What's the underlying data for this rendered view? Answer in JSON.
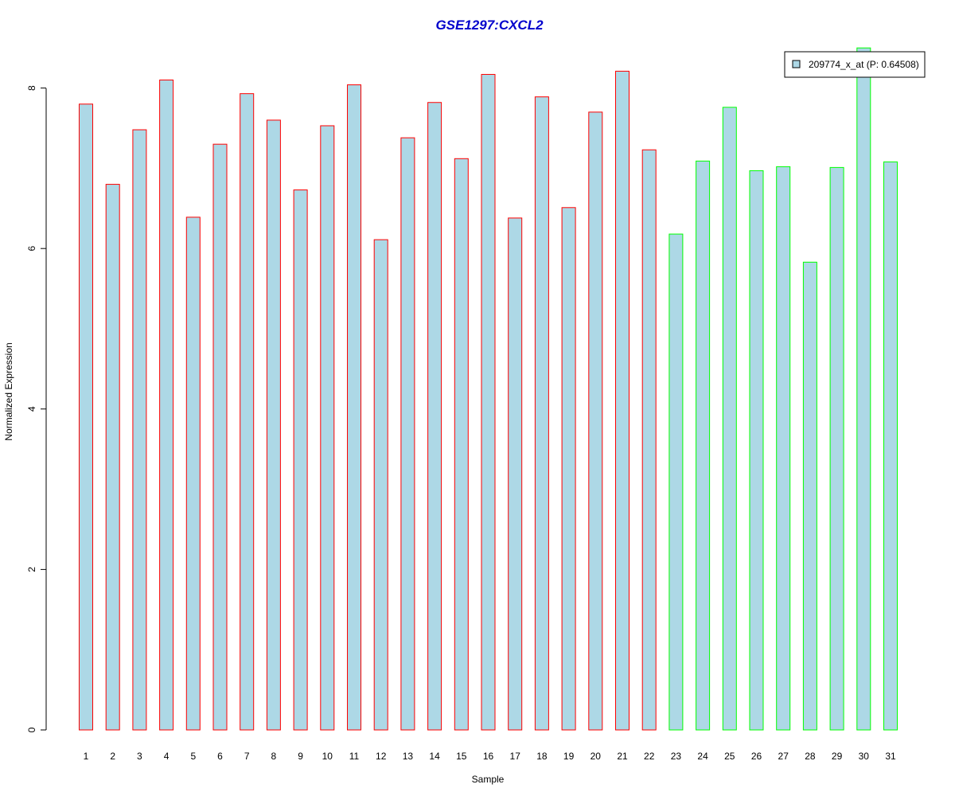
{
  "chart_data": {
    "type": "bar",
    "title": "GSE1297:CXCL2",
    "xlabel": "Sample",
    "ylabel": "Normalized Expression",
    "ylim": [
      0,
      8.5
    ],
    "yticks": [
      "0",
      "2",
      "4",
      "6",
      "8"
    ],
    "categories": [
      "1",
      "2",
      "3",
      "4",
      "5",
      "6",
      "7",
      "8",
      "9",
      "10",
      "11",
      "12",
      "13",
      "14",
      "15",
      "16",
      "17",
      "18",
      "19",
      "20",
      "21",
      "22",
      "23",
      "24",
      "25",
      "26",
      "27",
      "28",
      "29",
      "30",
      "31"
    ],
    "series": [
      {
        "name": "209774_x_at (P: 0.64508)",
        "values": [
          7.8,
          6.8,
          7.48,
          8.1,
          6.39,
          7.3,
          7.93,
          7.6,
          6.73,
          7.53,
          8.04,
          6.11,
          7.38,
          7.82,
          7.12,
          8.17,
          6.38,
          7.89,
          6.51,
          7.7,
          8.21,
          7.23,
          6.18,
          7.09,
          7.76,
          6.97,
          7.02,
          5.83,
          7.01,
          8.5,
          7.08
        ]
      }
    ],
    "group_colors": [
      "#ff0000",
      "#ff0000",
      "#ff0000",
      "#ff0000",
      "#ff0000",
      "#ff0000",
      "#ff0000",
      "#ff0000",
      "#ff0000",
      "#ff0000",
      "#ff0000",
      "#ff0000",
      "#ff0000",
      "#ff0000",
      "#ff0000",
      "#ff0000",
      "#ff0000",
      "#ff0000",
      "#ff0000",
      "#ff0000",
      "#ff0000",
      "#ff0000",
      "#00ff00",
      "#00ff00",
      "#00ff00",
      "#00ff00",
      "#00ff00",
      "#00ff00",
      "#00ff00",
      "#00ff00",
      "#00ff00"
    ],
    "bar_fill": "#add8e6",
    "title_color": "#0000cc",
    "legend_position": "top-right",
    "grid": false
  }
}
